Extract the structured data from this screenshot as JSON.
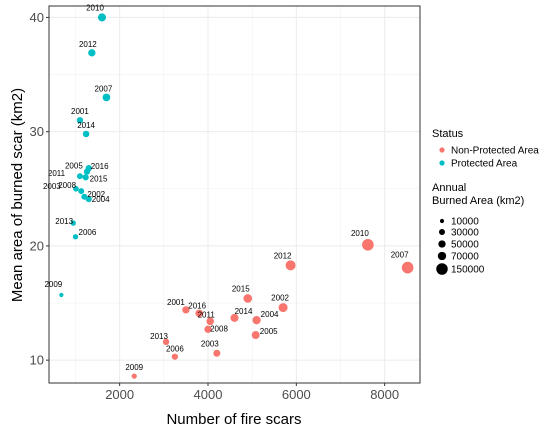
{
  "chart_data": {
    "type": "scatter",
    "xlabel": "Number of fire scars",
    "ylabel": "Mean area of burned scar (km2)",
    "xlim": [
      400,
      8800
    ],
    "ylim": [
      8,
      41
    ],
    "x_ticks": [
      "2000",
      "4000",
      "6000",
      "8000"
    ],
    "y_ticks": [
      "10",
      "20",
      "30",
      "40"
    ],
    "grid": true,
    "legend_placement": "right",
    "colors": {
      "Non-Protected Area": "#f8766d",
      "Protected Area": "#00bfc4"
    },
    "legend": {
      "color_title": "Status",
      "color_entries": [
        "Non-Protected Area",
        "Protected Area"
      ],
      "size_title": [
        "Annual",
        "Burned Area (km2)"
      ],
      "size_entries": [
        "10000",
        "30000",
        "50000",
        "70000",
        "150000"
      ]
    },
    "series": [
      {
        "name": "Non-Protected Area",
        "points": [
          {
            "label": "2009",
            "x": 2330,
            "y": 8.6,
            "size": 20000
          },
          {
            "label": "2006",
            "x": 3250,
            "y": 10.3,
            "size": 33000
          },
          {
            "label": "2013",
            "x": 3050,
            "y": 11.6,
            "size": 35000
          },
          {
            "label": "2003",
            "x": 4200,
            "y": 10.6,
            "size": 45000
          },
          {
            "label": "2008",
            "x": 4000,
            "y": 12.7,
            "size": 50000
          },
          {
            "label": "2005",
            "x": 5080,
            "y": 12.2,
            "size": 62000
          },
          {
            "label": "2011",
            "x": 4050,
            "y": 13.4,
            "size": 54000
          },
          {
            "label": "2016",
            "x": 3800,
            "y": 14.1,
            "size": 53000
          },
          {
            "label": "2001",
            "x": 3500,
            "y": 14.4,
            "size": 50000
          },
          {
            "label": "2014",
            "x": 4600,
            "y": 13.7,
            "size": 63000
          },
          {
            "label": "2004",
            "x": 5100,
            "y": 13.5,
            "size": 69000
          },
          {
            "label": "2015",
            "x": 4900,
            "y": 15.4,
            "size": 75000
          },
          {
            "label": "2002",
            "x": 5700,
            "y": 14.6,
            "size": 83000
          },
          {
            "label": "2012",
            "x": 5870,
            "y": 18.3,
            "size": 107000
          },
          {
            "label": "2010",
            "x": 7620,
            "y": 20.1,
            "size": 153000
          },
          {
            "label": "2007",
            "x": 8520,
            "y": 18.1,
            "size": 154000
          }
        ]
      },
      {
        "name": "Protected Area",
        "points": [
          {
            "label": "2009",
            "x": 680,
            "y": 15.7,
            "size": 10500
          },
          {
            "label": "2006",
            "x": 1000,
            "y": 20.8,
            "size": 21000
          },
          {
            "label": "2013",
            "x": 950,
            "y": 22.0,
            "size": 21000
          },
          {
            "label": "2004",
            "x": 1300,
            "y": 24.1,
            "size": 31000
          },
          {
            "label": "2002",
            "x": 1200,
            "y": 24.3,
            "size": 29000
          },
          {
            "label": "2008",
            "x": 1130,
            "y": 24.8,
            "size": 28000
          },
          {
            "label": "2003",
            "x": 1010,
            "y": 25.0,
            "size": 25000
          },
          {
            "label": "2011",
            "x": 1100,
            "y": 26.1,
            "size": 28000
          },
          {
            "label": "2015",
            "x": 1230,
            "y": 26.0,
            "size": 32000
          },
          {
            "label": "2005",
            "x": 1260,
            "y": 26.5,
            "size": 33000
          },
          {
            "label": "2016",
            "x": 1300,
            "y": 26.8,
            "size": 35000
          },
          {
            "label": "2014",
            "x": 1240,
            "y": 29.8,
            "size": 37000
          },
          {
            "label": "2001",
            "x": 1100,
            "y": 31.0,
            "size": 34000
          },
          {
            "label": "2007",
            "x": 1700,
            "y": 33.0,
            "size": 56000
          },
          {
            "label": "2012",
            "x": 1370,
            "y": 36.9,
            "size": 50000
          },
          {
            "label": "2010",
            "x": 1600,
            "y": 40.0,
            "size": 64000
          }
        ]
      }
    ]
  }
}
